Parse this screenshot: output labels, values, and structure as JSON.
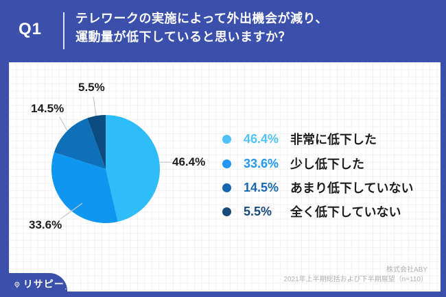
{
  "frame": {
    "accent_blue": "#3b50ab",
    "panel_bg": "#ffffff",
    "grid_line": "#f3f1f4"
  },
  "header": {
    "q_label": "Q1",
    "question_line1": "テレワークの実施によって外出機会が減り、",
    "question_line2": "運動量が低下していると思いますか？"
  },
  "chart_data": {
    "type": "pie",
    "title": "テレワークの実施によって外出機会が減り、運動量が低下していると思いますか？",
    "start_angle_deg": 0,
    "direction": "clockwise",
    "slices": [
      {
        "label": "非常に低下した",
        "value": 46.4,
        "pct": "46.4%",
        "color": "#2ebdf8",
        "legend_color": "#4fc3f7"
      },
      {
        "label": "少し低下した",
        "value": 33.6,
        "pct": "33.6%",
        "color": "#0f96f1",
        "legend_color": "#2196f3"
      },
      {
        "label": "あまり低下していない",
        "value": 14.5,
        "pct": "14.5%",
        "color": "#0e70b8",
        "legend_color": "#1566ae"
      },
      {
        "label": "全く低下していない",
        "value": 5.5,
        "pct": "5.5%",
        "color": "#0d4c81",
        "legend_color": "#17497a"
      }
    ],
    "legend_position": "right",
    "leader_line_color": "#c9c7ca"
  },
  "footer": {
    "company": "株式会社ABY",
    "source": "2021年上半期総括および下半期展望（n=110）",
    "logo_text": "リサピー",
    "logo_mark": "."
  }
}
